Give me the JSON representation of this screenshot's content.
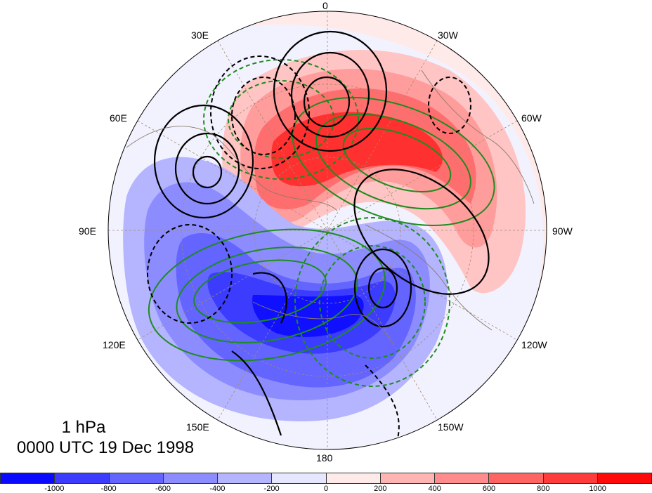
{
  "map": {
    "caption_level": "1 hPa",
    "caption_time": "0000 UTC 19 Dec 1998",
    "longitude_labels": [
      "0",
      "30W",
      "60W",
      "90W",
      "120W",
      "150W",
      "180",
      "150E",
      "120E",
      "90E",
      "60E",
      "30E"
    ],
    "projection": "polar-stereographic-north",
    "colorbar": {
      "tick_labels": [
        "-1000",
        "-800",
        "-600",
        "-400",
        "-200",
        "0",
        "200",
        "400",
        "600",
        "800",
        "1000"
      ],
      "colors": [
        "#0a0aff",
        "#3c3cff",
        "#6464ff",
        "#8c8cff",
        "#b4b4ff",
        "#e6e6ff",
        "#ffeaea",
        "#ffb4b4",
        "#ff8c8c",
        "#ff6464",
        "#ff3c3c",
        "#ff0a0a"
      ]
    },
    "contour_colors": {
      "geopotential": "#000000",
      "second_field": "#1e8c1e"
    }
  }
}
